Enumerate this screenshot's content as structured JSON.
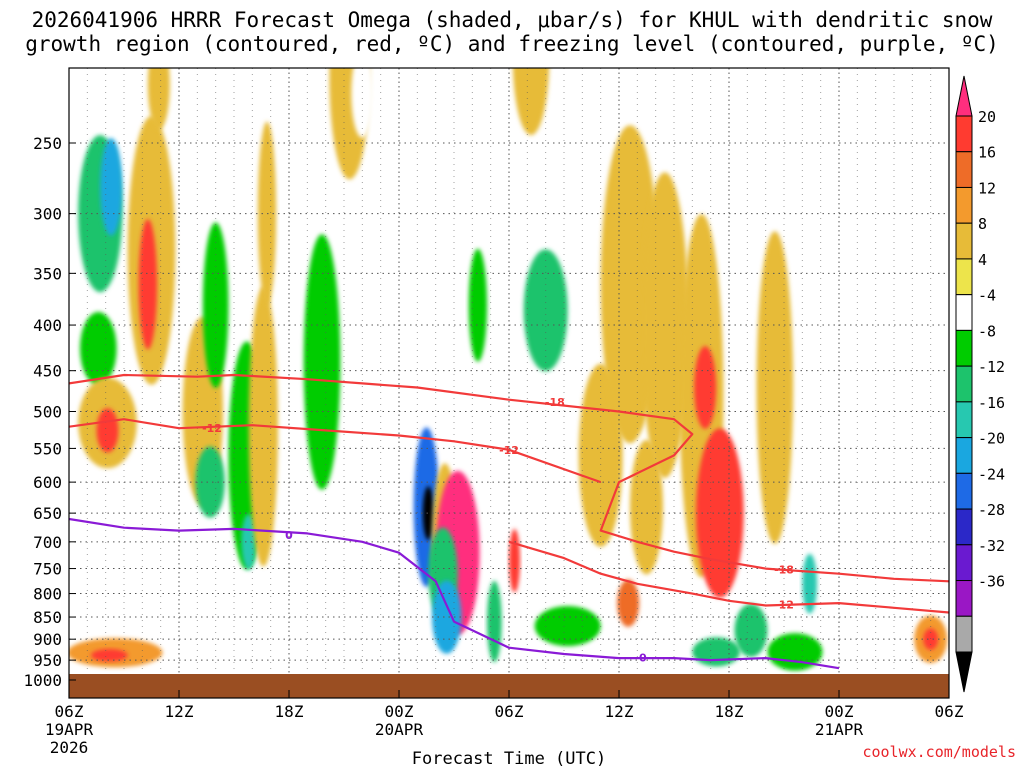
{
  "chart_data": {
    "type": "heatmap",
    "title_line1": "2026041906 HRRR Forecast Omega (shaded, μbar/s) for KHUL with dendritic snow",
    "title_line2": "growth region (contoured, red, ºC) and freezing level (contoured, purple, ºC)",
    "xlabel": "Forecast Time (UTC)",
    "credit": "coolwx.com/models",
    "x_hours": [
      0,
      6,
      12,
      18,
      24,
      30,
      36,
      42,
      48
    ],
    "x_ticks": [
      "06Z",
      "12Z",
      "18Z",
      "00Z",
      "06Z",
      "12Z",
      "18Z",
      "00Z",
      "06Z"
    ],
    "x_date_labels": [
      {
        "hour": 0,
        "line1": "19APR",
        "line2": "2026"
      },
      {
        "hour": 18,
        "line1": "20APR",
        "line2": ""
      },
      {
        "hour": 42,
        "line1": "21APR",
        "line2": ""
      }
    ],
    "y_ticks": [
      250,
      300,
      350,
      400,
      450,
      500,
      550,
      600,
      650,
      700,
      750,
      800,
      850,
      900,
      950,
      1000
    ],
    "ylim": [
      200,
      1000
    ],
    "colorbar": {
      "levels": [
        20,
        16,
        12,
        8,
        4,
        -4,
        -8,
        -12,
        -16,
        -20,
        -24,
        -28,
        -32,
        -36
      ],
      "colors": [
        "#ff2e7e",
        "#ff3b30",
        "#ee6c28",
        "#f39a2d",
        "#e7bb38",
        "#ede44b",
        "#ffffff",
        "#00cc00",
        "#1dc36c",
        "#27c8b0",
        "#1aa7e0",
        "#1e6ae6",
        "#2b28c8",
        "#6a1ad0",
        "#9a17c5",
        "#a9a9a9",
        "#000000"
      ]
    },
    "omega_blobs": [
      {
        "t": 1.7,
        "p": 300,
        "dt": 1.2,
        "dp": 60,
        "value": -14
      },
      {
        "t": 2.3,
        "p": 280,
        "dt": 0.6,
        "dp": 35,
        "value": -22
      },
      {
        "t": 1.6,
        "p": 425,
        "dt": 1.0,
        "dp": 40,
        "value": -10
      },
      {
        "t": 2.1,
        "p": 515,
        "dt": 1.6,
        "dp": 60,
        "value": 8
      },
      {
        "t": 2.1,
        "p": 525,
        "dt": 0.6,
        "dp": 30,
        "value": 17
      },
      {
        "t": 2.5,
        "p": 932,
        "dt": 2.6,
        "dp": 35,
        "value": 9
      },
      {
        "t": 2.2,
        "p": 938,
        "dt": 1.0,
        "dp": 15,
        "value": 19
      },
      {
        "t": 4.5,
        "p": 330,
        "dt": 1.3,
        "dp": 110,
        "value": 8
      },
      {
        "t": 4.3,
        "p": 360,
        "dt": 0.5,
        "dp": 60,
        "value": 18
      },
      {
        "t": 4.9,
        "p": 215,
        "dt": 0.6,
        "dp": 25,
        "value": 6
      },
      {
        "t": 7.3,
        "p": 500,
        "dt": 1.1,
        "dp": 120,
        "value": 7
      },
      {
        "t": 8.0,
        "p": 380,
        "dt": 0.7,
        "dp": 80,
        "value": -10
      },
      {
        "t": 7.7,
        "p": 600,
        "dt": 0.8,
        "dp": 55,
        "value": -12
      },
      {
        "t": 9.7,
        "p": 560,
        "dt": 1.0,
        "dp": 160,
        "value": -9
      },
      {
        "t": 9.8,
        "p": 700,
        "dt": 0.4,
        "dp": 50,
        "value": -18
      },
      {
        "t": 10.6,
        "p": 520,
        "dt": 0.8,
        "dp": 180,
        "value": 5
      },
      {
        "t": 10.8,
        "p": 300,
        "dt": 0.5,
        "dp": 70,
        "value": 7
      },
      {
        "t": 13.8,
        "p": 440,
        "dt": 1.0,
        "dp": 140,
        "value": -11
      },
      {
        "t": 15.3,
        "p": 210,
        "dt": 1.1,
        "dp": 55,
        "value": 6
      },
      {
        "t": 16.0,
        "p": 220,
        "dt": 0.6,
        "dp": 25,
        "value": -6
      },
      {
        "t": 19.5,
        "p": 640,
        "dt": 0.7,
        "dp": 130,
        "value": -26
      },
      {
        "t": 19.6,
        "p": 650,
        "dt": 0.3,
        "dp": 45,
        "value": -36
      },
      {
        "t": 20.5,
        "p": 700,
        "dt": 0.7,
        "dp": 140,
        "value": 8
      },
      {
        "t": 21.2,
        "p": 720,
        "dt": 1.2,
        "dp": 150,
        "value": 22
      },
      {
        "t": 20.4,
        "p": 760,
        "dt": 0.8,
        "dp": 90,
        "value": -12
      },
      {
        "t": 20.6,
        "p": 850,
        "dt": 0.8,
        "dp": 80,
        "value": -22
      },
      {
        "t": 22.3,
        "p": 380,
        "dt": 0.5,
        "dp": 55,
        "value": -8
      },
      {
        "t": 24.3,
        "p": 735,
        "dt": 0.3,
        "dp": 60,
        "value": 18
      },
      {
        "t": 23.2,
        "p": 860,
        "dt": 0.4,
        "dp": 90,
        "value": -14
      },
      {
        "t": 26.0,
        "p": 385,
        "dt": 1.2,
        "dp": 60,
        "value": -12
      },
      {
        "t": 25.2,
        "p": 200,
        "dt": 1.0,
        "dp": 40,
        "value": 5
      },
      {
        "t": 27.2,
        "p": 870,
        "dt": 1.8,
        "dp": 45,
        "value": -10
      },
      {
        "t": 29.0,
        "p": 560,
        "dt": 1.2,
        "dp": 130,
        "value": 7
      },
      {
        "t": 30.6,
        "p": 360,
        "dt": 1.6,
        "dp": 140,
        "value": 8
      },
      {
        "t": 32.5,
        "p": 400,
        "dt": 1.3,
        "dp": 150,
        "value": 7
      },
      {
        "t": 31.5,
        "p": 640,
        "dt": 0.9,
        "dp": 110,
        "value": 7
      },
      {
        "t": 34.5,
        "p": 480,
        "dt": 1.2,
        "dp": 210,
        "value": 7
      },
      {
        "t": 35.5,
        "p": 650,
        "dt": 1.3,
        "dp": 140,
        "value": 19
      },
      {
        "t": 34.7,
        "p": 470,
        "dt": 0.6,
        "dp": 50,
        "value": 17
      },
      {
        "t": 38.5,
        "p": 470,
        "dt": 1.0,
        "dp": 180,
        "value": 7
      },
      {
        "t": 35.3,
        "p": 930,
        "dt": 1.3,
        "dp": 35,
        "value": -12
      },
      {
        "t": 37.2,
        "p": 880,
        "dt": 0.9,
        "dp": 60,
        "value": -15
      },
      {
        "t": 39.6,
        "p": 930,
        "dt": 1.5,
        "dp": 45,
        "value": -9
      },
      {
        "t": 40.4,
        "p": 780,
        "dt": 0.4,
        "dp": 60,
        "value": -18
      },
      {
        "t": 30.5,
        "p": 820,
        "dt": 0.6,
        "dp": 50,
        "value": 16
      },
      {
        "t": 47.0,
        "p": 900,
        "dt": 0.9,
        "dp": 55,
        "value": 9
      },
      {
        "t": 47.0,
        "p": 900,
        "dt": 0.4,
        "dp": 25,
        "value": 18
      }
    ],
    "dgz_minus12": [
      [
        0,
        520
      ],
      [
        3,
        510
      ],
      [
        6,
        522
      ],
      [
        10,
        518
      ],
      [
        14,
        525
      ],
      [
        18,
        532
      ],
      [
        21,
        540
      ],
      [
        24,
        552
      ],
      [
        29,
        600
      ]
    ],
    "dgz_minus18": [
      [
        0,
        465
      ],
      [
        3,
        455
      ],
      [
        7,
        457
      ],
      [
        9,
        455
      ],
      [
        13,
        460
      ],
      [
        16,
        465
      ],
      [
        19,
        470
      ],
      [
        24,
        485
      ],
      [
        30,
        500
      ],
      [
        33,
        510
      ],
      [
        34,
        530
      ],
      [
        33,
        560
      ],
      [
        30,
        600
      ],
      [
        29,
        680
      ],
      [
        31,
        700
      ],
      [
        33,
        718
      ],
      [
        35,
        732
      ],
      [
        38,
        750
      ],
      [
        42,
        760
      ],
      [
        45,
        770
      ],
      [
        48,
        775
      ]
    ],
    "dgz_minus12_lower": [
      [
        24,
        700
      ],
      [
        27,
        730
      ],
      [
        29,
        760
      ],
      [
        31,
        780
      ],
      [
        34,
        800
      ],
      [
        36,
        815
      ],
      [
        38,
        825
      ],
      [
        42,
        820
      ],
      [
        45,
        830
      ],
      [
        48,
        840
      ]
    ],
    "freezing_level": [
      [
        0,
        660
      ],
      [
        3,
        675
      ],
      [
        6,
        680
      ],
      [
        9,
        677
      ],
      [
        13,
        685
      ],
      [
        16,
        700
      ],
      [
        18,
        720
      ],
      [
        20,
        775
      ],
      [
        21,
        860
      ],
      [
        24,
        920
      ],
      [
        27,
        935
      ],
      [
        30,
        945
      ],
      [
        33,
        945
      ],
      [
        35,
        950
      ],
      [
        38,
        945
      ],
      [
        40,
        955
      ],
      [
        42,
        970
      ]
    ],
    "contour_labels": [
      {
        "text": "-12",
        "t": 7.8,
        "p": 522,
        "color": "red"
      },
      {
        "text": "-18",
        "t": 26.5,
        "p": 488,
        "color": "red"
      },
      {
        "text": "-12",
        "t": 24.0,
        "p": 552,
        "color": "red"
      },
      {
        "text": "-18",
        "t": 39.0,
        "p": 752,
        "color": "red"
      },
      {
        "text": "-12",
        "t": 39.0,
        "p": 823,
        "color": "red"
      },
      {
        "text": "0",
        "t": 12.0,
        "p": 688,
        "color": "purple"
      },
      {
        "text": "0",
        "t": 31.3,
        "p": 944,
        "color": "purple"
      }
    ]
  }
}
